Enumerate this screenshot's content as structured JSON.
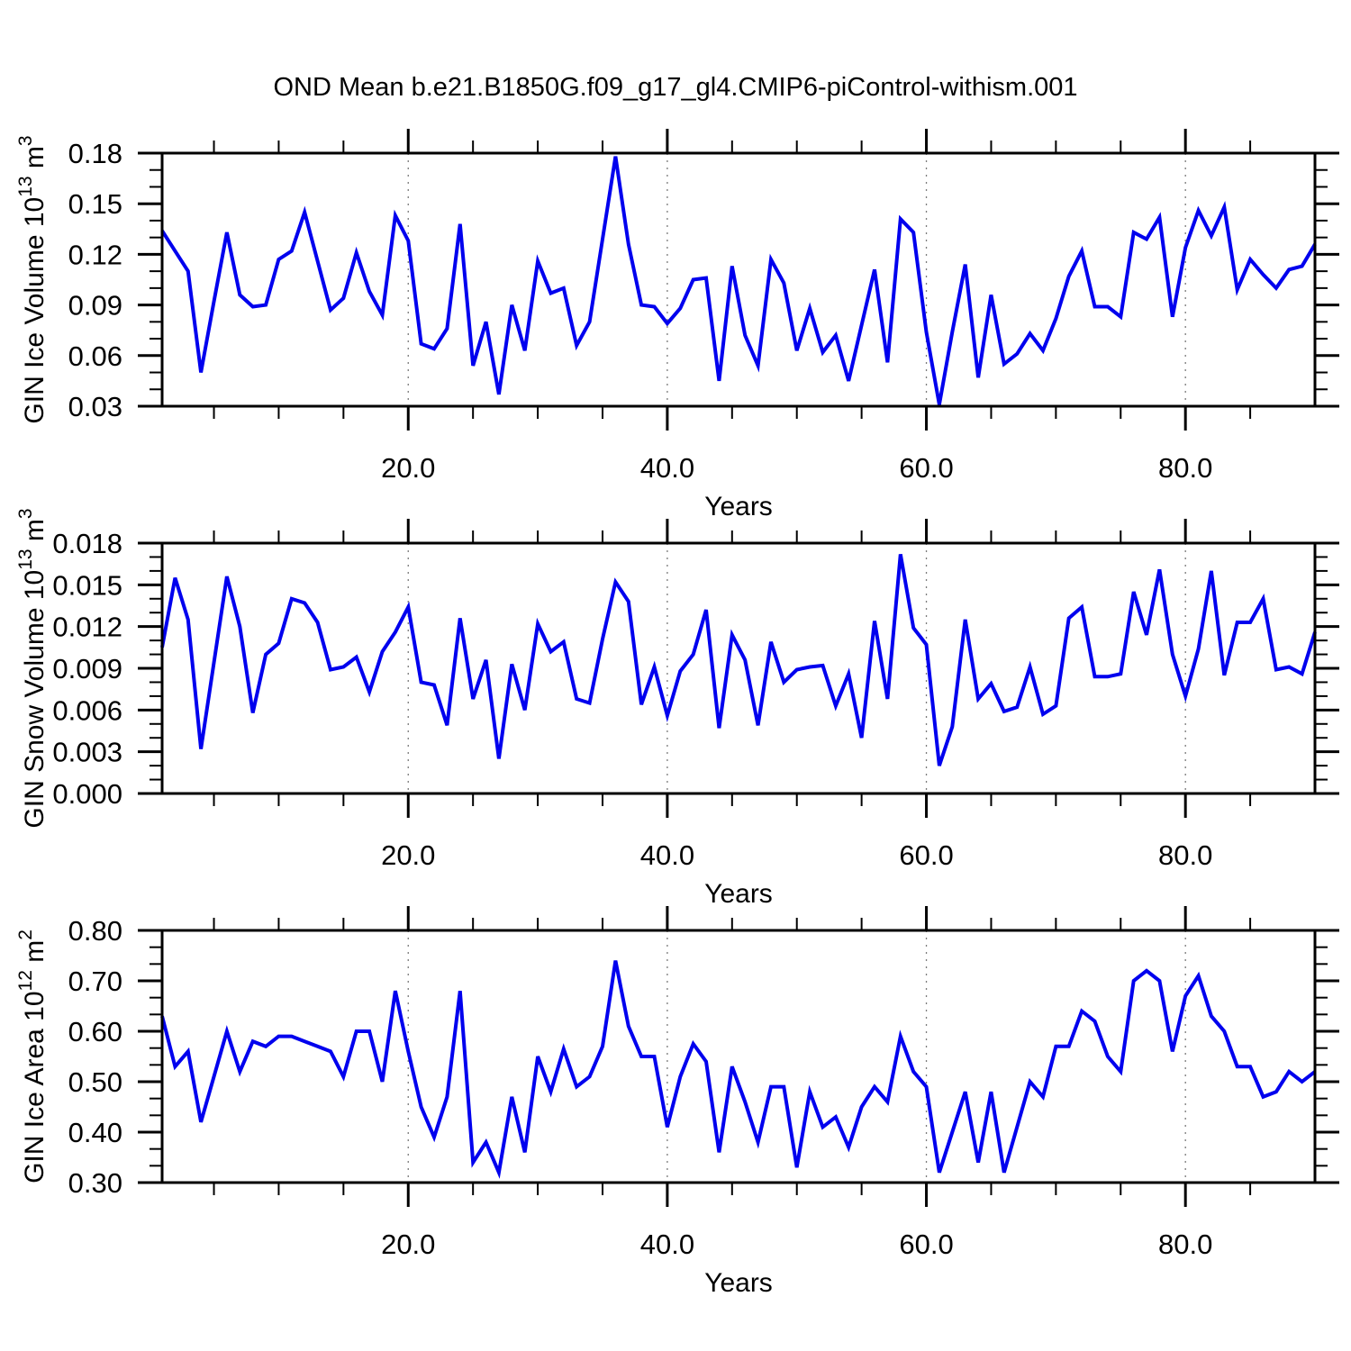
{
  "title": "OND Mean b.e21.B1850G.f09_g17_gl4.CMIP6-piControl-withism.001",
  "colors": {
    "line": "#0000EE",
    "frame": "#000000",
    "grid": "#7a7a7a",
    "text": "#000000",
    "background": "#ffffff"
  },
  "chart_data": [
    {
      "type": "line",
      "name": "ice-volume",
      "xlabel": "Years",
      "ylabel_parts": {
        "text": "GIN Ice Volume 10",
        "exp": "13",
        "unit": " m",
        "unit_exp": "3"
      },
      "x_start": 1,
      "x_end": 90,
      "xlim": [
        1,
        90
      ],
      "ylim": [
        0.03,
        0.18
      ],
      "grid": "vertical-dashed",
      "legend": "none",
      "xticks": [
        20,
        40,
        60,
        80
      ],
      "xtick_labels": [
        "20.0",
        "40.0",
        "60.0",
        "80.0"
      ],
      "x_minor_step": 5,
      "yticks": [
        0.03,
        0.06,
        0.09,
        0.12,
        0.15,
        0.18
      ],
      "ytick_labels": [
        "0.03",
        "0.06",
        "0.09",
        "0.12",
        "0.15",
        "0.18"
      ],
      "values": [
        0.134,
        0.122,
        0.11,
        0.05,
        0.092,
        0.133,
        0.096,
        0.089,
        0.09,
        0.117,
        0.122,
        0.145,
        0.116,
        0.087,
        0.094,
        0.121,
        0.098,
        0.084,
        0.143,
        0.128,
        0.067,
        0.064,
        0.076,
        0.138,
        0.054,
        0.08,
        0.037,
        0.09,
        0.063,
        0.116,
        0.097,
        0.1,
        0.066,
        0.08,
        0.129,
        0.178,
        0.126,
        0.09,
        0.089,
        0.079,
        0.088,
        0.105,
        0.106,
        0.045,
        0.113,
        0.072,
        0.054,
        0.117,
        0.103,
        0.063,
        0.088,
        0.062,
        0.072,
        0.045,
        0.078,
        0.111,
        0.056,
        0.141,
        0.133,
        0.074,
        0.031,
        0.074,
        0.114,
        0.047,
        0.096,
        0.055,
        0.061,
        0.073,
        0.063,
        0.082,
        0.107,
        0.122,
        0.089,
        0.089,
        0.083,
        0.133,
        0.129,
        0.142,
        0.083,
        0.124,
        0.146,
        0.131,
        0.148,
        0.099,
        0.117,
        0.108,
        0.1,
        0.111,
        0.113,
        0.126
      ]
    },
    {
      "type": "line",
      "name": "snow-volume",
      "xlabel": "Years",
      "ylabel_parts": {
        "text": "GIN Snow Volume 10",
        "exp": "13",
        "unit": " m",
        "unit_exp": "3"
      },
      "x_start": 1,
      "x_end": 90,
      "xlim": [
        1,
        90
      ],
      "ylim": [
        0.0,
        0.018
      ],
      "grid": "vertical-dashed",
      "legend": "none",
      "xticks": [
        20,
        40,
        60,
        80
      ],
      "xtick_labels": [
        "20.0",
        "40.0",
        "60.0",
        "80.0"
      ],
      "x_minor_step": 5,
      "yticks": [
        0.0,
        0.003,
        0.006,
        0.009,
        0.012,
        0.015,
        0.018
      ],
      "ytick_labels": [
        "0.000",
        "0.003",
        "0.006",
        "0.009",
        "0.012",
        "0.015",
        "0.018"
      ],
      "values": [
        0.0105,
        0.0155,
        0.0125,
        0.0032,
        0.0094,
        0.0156,
        0.012,
        0.0058,
        0.01,
        0.0108,
        0.014,
        0.0137,
        0.0123,
        0.0089,
        0.0091,
        0.0098,
        0.0073,
        0.0102,
        0.0116,
        0.0134,
        0.008,
        0.0078,
        0.0049,
        0.0126,
        0.0068,
        0.0096,
        0.0025,
        0.0093,
        0.006,
        0.0122,
        0.0102,
        0.0109,
        0.0068,
        0.0065,
        0.0111,
        0.0152,
        0.0138,
        0.0064,
        0.0091,
        0.0056,
        0.0088,
        0.01,
        0.0132,
        0.0047,
        0.0114,
        0.0096,
        0.0049,
        0.0109,
        0.008,
        0.0089,
        0.0091,
        0.0092,
        0.0063,
        0.0086,
        0.004,
        0.0124,
        0.0068,
        0.0172,
        0.0119,
        0.0107,
        0.002,
        0.0048,
        0.0125,
        0.0068,
        0.0079,
        0.0059,
        0.0062,
        0.0091,
        0.0057,
        0.0063,
        0.0126,
        0.0134,
        0.0084,
        0.0084,
        0.0086,
        0.0145,
        0.0114,
        0.0161,
        0.01,
        0.007,
        0.0104,
        0.016,
        0.0085,
        0.0123,
        0.0123,
        0.014,
        0.0089,
        0.0091,
        0.0086,
        0.0116
      ]
    },
    {
      "type": "line",
      "name": "ice-area",
      "xlabel": "Years",
      "ylabel_parts": {
        "text": "GIN Ice Area 10",
        "exp": "12",
        "unit": " m",
        "unit_exp": "2"
      },
      "x_start": 1,
      "x_end": 90,
      "xlim": [
        1,
        90
      ],
      "ylim": [
        0.3,
        0.8
      ],
      "grid": "vertical-dashed",
      "legend": "none",
      "xticks": [
        20,
        40,
        60,
        80
      ],
      "xtick_labels": [
        "20.0",
        "40.0",
        "60.0",
        "80.0"
      ],
      "x_minor_step": 5,
      "yticks": [
        0.3,
        0.4,
        0.5,
        0.6,
        0.7,
        0.8
      ],
      "ytick_labels": [
        "0.30",
        "0.40",
        "0.50",
        "0.60",
        "0.70",
        "0.80"
      ],
      "values": [
        0.63,
        0.53,
        0.56,
        0.42,
        0.51,
        0.6,
        0.52,
        0.58,
        0.57,
        0.59,
        0.59,
        0.58,
        0.57,
        0.56,
        0.51,
        0.6,
        0.6,
        0.5,
        0.68,
        0.56,
        0.45,
        0.39,
        0.47,
        0.68,
        0.34,
        0.38,
        0.32,
        0.47,
        0.36,
        0.55,
        0.48,
        0.565,
        0.49,
        0.51,
        0.57,
        0.74,
        0.61,
        0.55,
        0.55,
        0.41,
        0.51,
        0.575,
        0.54,
        0.36,
        0.53,
        0.46,
        0.38,
        0.49,
        0.49,
        0.33,
        0.48,
        0.41,
        0.43,
        0.37,
        0.45,
        0.49,
        0.46,
        0.59,
        0.52,
        0.49,
        0.32,
        0.4,
        0.48,
        0.34,
        0.48,
        0.32,
        0.41,
        0.5,
        0.47,
        0.57,
        0.57,
        0.64,
        0.62,
        0.55,
        0.52,
        0.7,
        0.72,
        0.7,
        0.56,
        0.67,
        0.71,
        0.63,
        0.6,
        0.53,
        0.53,
        0.47,
        0.48,
        0.52,
        0.5,
        0.52
      ]
    }
  ]
}
